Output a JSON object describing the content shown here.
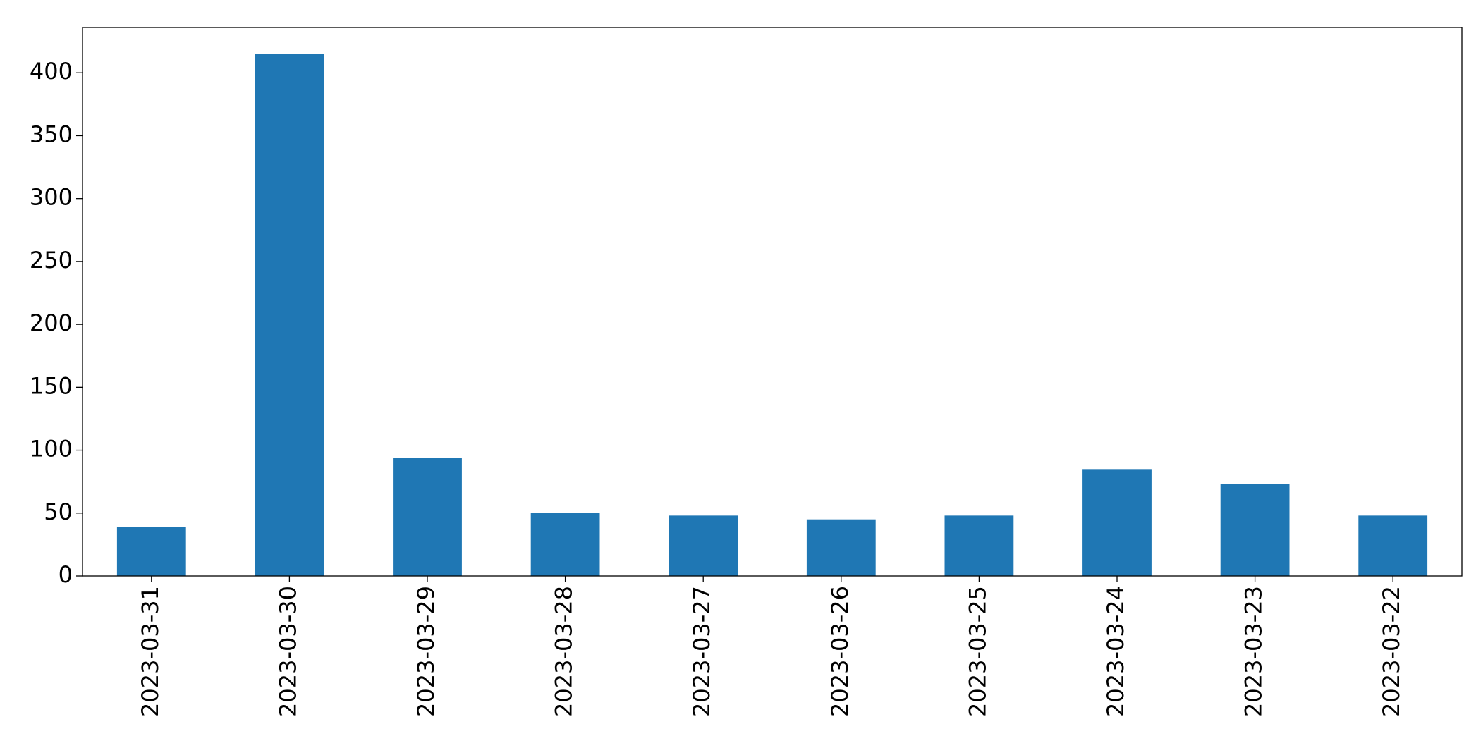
{
  "chart_data": {
    "type": "bar",
    "categories": [
      "2023-03-31",
      "2023-03-30",
      "2023-03-29",
      "2023-03-28",
      "2023-03-27",
      "2023-03-26",
      "2023-03-25",
      "2023-03-24",
      "2023-03-23",
      "2023-03-22"
    ],
    "values": [
      39,
      415,
      94,
      50,
      48,
      45,
      48,
      85,
      73,
      48
    ],
    "color": "#1f77b4",
    "ylim": [
      0,
      436
    ],
    "yticks": [
      0,
      50,
      100,
      150,
      200,
      250,
      300,
      350,
      400
    ],
    "grid": false
  }
}
